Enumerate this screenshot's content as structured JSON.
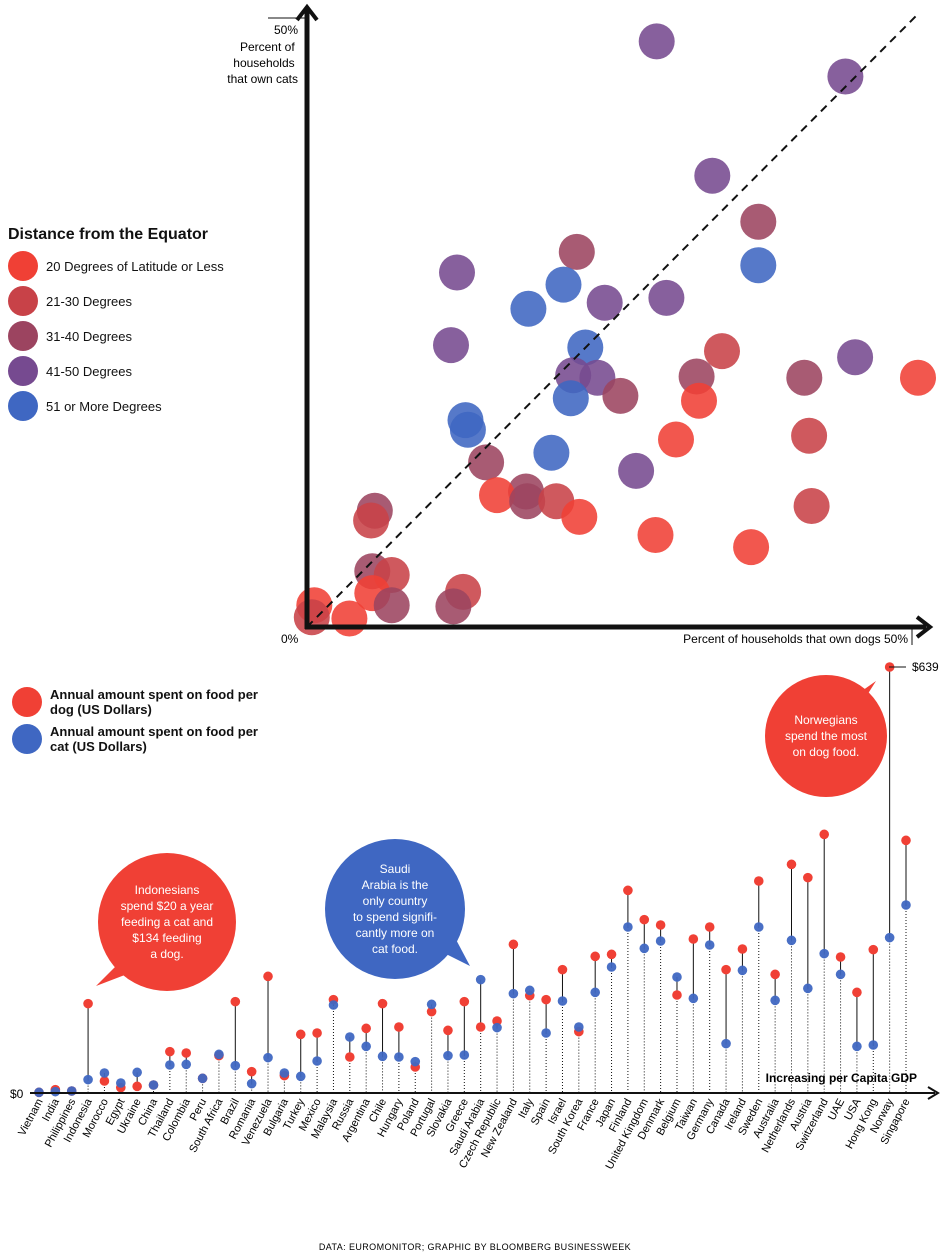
{
  "colors": {
    "lat_le20": "#f04035",
    "lat_21_30": "#c84248",
    "lat_31_40": "#9c4460",
    "lat_41_50": "#764a90",
    "lat_ge51": "#3f67c2",
    "dog": "#f04035",
    "cat": "#3f67c2",
    "axis": "#111111"
  },
  "chart_data": [
    {
      "type": "scatter",
      "xlabel": "Percent of households that own dogs",
      "ylabel": "Percent of households that own cats",
      "x_origin_label": "0%",
      "x_max_label": "50%",
      "y_max_label": "50%",
      "xlim": [
        0,
        50
      ],
      "ylim": [
        0,
        50
      ],
      "reference_line": "diagonal (dashed)",
      "legend_title": "Distance from the Equator",
      "legend_placement": "left",
      "groups": [
        {
          "key": "lat_le20",
          "label": "20 Degrees of Latitude or Less"
        },
        {
          "key": "lat_21_30",
          "label": "21-30 Degrees"
        },
        {
          "key": "lat_31_40",
          "label": "31-40 Degrees"
        },
        {
          "key": "lat_41_50",
          "label": "41-50 Degrees"
        },
        {
          "key": "lat_ge51",
          "label": "51 or More Degrees"
        }
      ],
      "points": [
        {
          "x": 28.9,
          "y": 48.4,
          "g": "lat_41_50"
        },
        {
          "x": 44.5,
          "y": 45.5,
          "g": "lat_41_50"
        },
        {
          "x": 33.5,
          "y": 37.3,
          "g": "lat_41_50"
        },
        {
          "x": 37.3,
          "y": 33.5,
          "g": "lat_31_40"
        },
        {
          "x": 37.3,
          "y": 29.9,
          "g": "lat_ge51"
        },
        {
          "x": 12.4,
          "y": 29.3,
          "g": "lat_41_50"
        },
        {
          "x": 22.3,
          "y": 31.0,
          "g": "lat_31_40"
        },
        {
          "x": 21.2,
          "y": 28.3,
          "g": "lat_ge51"
        },
        {
          "x": 24.6,
          "y": 26.8,
          "g": "lat_41_50"
        },
        {
          "x": 29.7,
          "y": 27.2,
          "g": "lat_41_50"
        },
        {
          "x": 18.3,
          "y": 26.3,
          "g": "lat_ge51"
        },
        {
          "x": 11.9,
          "y": 23.3,
          "g": "lat_41_50"
        },
        {
          "x": 23.0,
          "y": 23.1,
          "g": "lat_ge51"
        },
        {
          "x": 34.3,
          "y": 22.8,
          "g": "lat_21_30"
        },
        {
          "x": 22.0,
          "y": 20.8,
          "g": "lat_41_50"
        },
        {
          "x": 24.0,
          "y": 20.6,
          "g": "lat_41_50"
        },
        {
          "x": 32.2,
          "y": 20.7,
          "g": "lat_31_40"
        },
        {
          "x": 41.1,
          "y": 20.6,
          "g": "lat_31_40"
        },
        {
          "x": 45.3,
          "y": 22.3,
          "g": "lat_41_50"
        },
        {
          "x": 50.5,
          "y": 20.6,
          "g": "lat_le20"
        },
        {
          "x": 25.9,
          "y": 19.1,
          "g": "lat_31_40"
        },
        {
          "x": 32.4,
          "y": 18.7,
          "g": "lat_le20"
        },
        {
          "x": 21.8,
          "y": 18.9,
          "g": "lat_ge51"
        },
        {
          "x": 13.1,
          "y": 17.1,
          "g": "lat_ge51"
        },
        {
          "x": 13.3,
          "y": 16.3,
          "g": "lat_ge51"
        },
        {
          "x": 30.5,
          "y": 15.5,
          "g": "lat_le20"
        },
        {
          "x": 41.5,
          "y": 15.8,
          "g": "lat_21_30"
        },
        {
          "x": 20.2,
          "y": 14.4,
          "g": "lat_ge51"
        },
        {
          "x": 14.8,
          "y": 13.6,
          "g": "lat_31_40"
        },
        {
          "x": 27.2,
          "y": 12.9,
          "g": "lat_41_50"
        },
        {
          "x": 18.1,
          "y": 11.2,
          "g": "lat_31_40"
        },
        {
          "x": 15.7,
          "y": 10.9,
          "g": "lat_le20"
        },
        {
          "x": 18.2,
          "y": 10.4,
          "g": "lat_31_40"
        },
        {
          "x": 20.6,
          "y": 10.4,
          "g": "lat_21_30"
        },
        {
          "x": 22.5,
          "y": 9.1,
          "g": "lat_le20"
        },
        {
          "x": 5.6,
          "y": 9.6,
          "g": "lat_31_40"
        },
        {
          "x": 5.3,
          "y": 8.8,
          "g": "lat_21_30"
        },
        {
          "x": 28.8,
          "y": 7.6,
          "g": "lat_le20"
        },
        {
          "x": 36.7,
          "y": 6.6,
          "g": "lat_le20"
        },
        {
          "x": 41.7,
          "y": 10.0,
          "g": "lat_21_30"
        },
        {
          "x": 5.4,
          "y": 4.6,
          "g": "lat_31_40"
        },
        {
          "x": 7.0,
          "y": 4.3,
          "g": "lat_21_30"
        },
        {
          "x": 5.4,
          "y": 2.8,
          "g": "lat_le20"
        },
        {
          "x": 7.0,
          "y": 1.8,
          "g": "lat_31_40"
        },
        {
          "x": 12.9,
          "y": 2.9,
          "g": "lat_21_30"
        },
        {
          "x": 12.1,
          "y": 1.7,
          "g": "lat_31_40"
        },
        {
          "x": 0.6,
          "y": 1.8,
          "g": "lat_le20"
        },
        {
          "x": 0.4,
          "y": 0.8,
          "g": "lat_21_30"
        },
        {
          "x": 3.5,
          "y": 0.7,
          "g": "lat_le20"
        }
      ]
    },
    {
      "type": "dot-range",
      "xlabel": "Increasing per Capita GDP",
      "y_zero_label": "$0",
      "series": [
        {
          "name": "Annual amount spent on food per dog (US Dollars)",
          "key": "dog"
        },
        {
          "name": "Annual amount spent on food per cat (US Dollars)",
          "key": "cat"
        }
      ],
      "max_label": "$639",
      "ylim": [
        0,
        639
      ],
      "countries": [
        {
          "name": "Vietnam",
          "dog": 1,
          "cat": 1
        },
        {
          "name": "India",
          "dog": 5,
          "cat": 2
        },
        {
          "name": "Philippines",
          "dog": 3,
          "cat": 3
        },
        {
          "name": "Indonesia",
          "dog": 134,
          "cat": 20
        },
        {
          "name": "Morocco",
          "dog": 18,
          "cat": 30
        },
        {
          "name": "Egypt",
          "dog": 8,
          "cat": 15
        },
        {
          "name": "Ukraine",
          "dog": 10,
          "cat": 31
        },
        {
          "name": "China",
          "dog": 12,
          "cat": 12
        },
        {
          "name": "Thailand",
          "dog": 62,
          "cat": 42
        },
        {
          "name": "Colombia",
          "dog": 60,
          "cat": 43
        },
        {
          "name": "Peru",
          "dog": 22,
          "cat": 22
        },
        {
          "name": "South Africa",
          "dog": 56,
          "cat": 58
        },
        {
          "name": "Brazil",
          "dog": 137,
          "cat": 41
        },
        {
          "name": "Romania",
          "dog": 32,
          "cat": 14
        },
        {
          "name": "Venezuela",
          "dog": 175,
          "cat": 53
        },
        {
          "name": "Bulgaria",
          "dog": 26,
          "cat": 30
        },
        {
          "name": "Turkey",
          "dog": 88,
          "cat": 25
        },
        {
          "name": "Mexico",
          "dog": 90,
          "cat": 48
        },
        {
          "name": "Malaysia",
          "dog": 140,
          "cat": 132
        },
        {
          "name": "Russia",
          "dog": 54,
          "cat": 84
        },
        {
          "name": "Argentina",
          "dog": 97,
          "cat": 70
        },
        {
          "name": "Chile",
          "dog": 134,
          "cat": 55
        },
        {
          "name": "Hungary",
          "dog": 99,
          "cat": 54
        },
        {
          "name": "Poland",
          "dog": 39,
          "cat": 47
        },
        {
          "name": "Portugal",
          "dog": 122,
          "cat": 133
        },
        {
          "name": "Slovakia",
          "dog": 94,
          "cat": 56
        },
        {
          "name": "Greece",
          "dog": 137,
          "cat": 57
        },
        {
          "name": "Saudi Arabia",
          "dog": 99,
          "cat": 170
        },
        {
          "name": "Czech Republic",
          "dog": 108,
          "cat": 98
        },
        {
          "name": "New Zealand",
          "dog": 223,
          "cat": 149
        },
        {
          "name": "Italy",
          "dog": 146,
          "cat": 154
        },
        {
          "name": "Spain",
          "dog": 140,
          "cat": 90
        },
        {
          "name": "Israel",
          "dog": 185,
          "cat": 138
        },
        {
          "name": "South Korea",
          "dog": 92,
          "cat": 99
        },
        {
          "name": "France",
          "dog": 205,
          "cat": 151
        },
        {
          "name": "Japan",
          "dog": 208,
          "cat": 189
        },
        {
          "name": "Finland",
          "dog": 304,
          "cat": 249
        },
        {
          "name": "United Kingdom",
          "dog": 260,
          "cat": 217
        },
        {
          "name": "Denmark",
          "dog": 252,
          "cat": 228
        },
        {
          "name": "Belgium",
          "dog": 147,
          "cat": 174
        },
        {
          "name": "Taiwan",
          "dog": 231,
          "cat": 142
        },
        {
          "name": "Germany",
          "dog": 249,
          "cat": 222
        },
        {
          "name": "Canada",
          "dog": 185,
          "cat": 74
        },
        {
          "name": "Ireland",
          "dog": 216,
          "cat": 184
        },
        {
          "name": "Sweden",
          "dog": 318,
          "cat": 249
        },
        {
          "name": "Australia",
          "dog": 178,
          "cat": 139
        },
        {
          "name": "Netherlands",
          "dog": 343,
          "cat": 229
        },
        {
          "name": "Austria",
          "dog": 323,
          "cat": 157
        },
        {
          "name": "Switzerland",
          "dog": 388,
          "cat": 209
        },
        {
          "name": "UAE",
          "dog": 204,
          "cat": 178
        },
        {
          "name": "USA",
          "dog": 151,
          "cat": 70
        },
        {
          "name": "Hong Kong",
          "dog": 215,
          "cat": 72
        },
        {
          "name": "Norway",
          "dog": 639,
          "cat": 233
        },
        {
          "name": "Singapore",
          "dog": 379,
          "cat": 282
        }
      ]
    }
  ],
  "annotations": {
    "norway": [
      "Norwegians",
      "spend the most",
      "on dog food."
    ],
    "indonesia": [
      "Indonesians",
      "spend $20 a year",
      "feeding a cat and",
      "$134 feeding",
      "a dog."
    ],
    "saudi": [
      "Saudi",
      "Arabia is the",
      "only country",
      "to spend signifi-",
      "cantly more on",
      "cat food."
    ]
  },
  "footer": "DATA: EUROMONITOR; GRAPHIC BY BLOOMBERG BUSINESSWEEK"
}
